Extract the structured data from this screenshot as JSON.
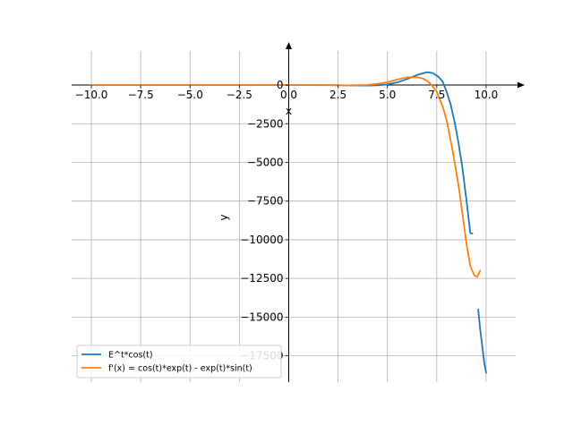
{
  "chart_data": {
    "type": "line",
    "xlabel": "x",
    "ylabel": "y",
    "xlim": [
      -11.0,
      11.5
    ],
    "ylim": [
      -19200,
      2200
    ],
    "x_ticks": [
      -10.0,
      -7.5,
      -5.0,
      -2.5,
      0.0,
      2.5,
      5.0,
      7.5,
      10.0
    ],
    "x_tick_labels": [
      "−10.0",
      "−7.5",
      "−5.0",
      "−2.5",
      "0.0",
      "2.5",
      "5.0",
      "7.5",
      "10.0"
    ],
    "y_ticks": [
      0,
      -2500,
      -5000,
      -7500,
      -10000,
      -12500,
      -15000,
      -17500
    ],
    "y_tick_labels": [
      "0",
      "−2500",
      "−5000",
      "−7500",
      "−10000",
      "−12500",
      "−15000",
      "−17500"
    ],
    "grid": true,
    "legend_position": "lower-left",
    "series": [
      {
        "name": "E^t*cos(t)",
        "color": "#1f77b4",
        "segments": [
          {
            "x": [
              -10,
              -8,
              -6,
              -4,
              -2,
              0,
              1,
              2,
              3,
              4,
              4.5,
              5,
              5.5,
              6,
              6.5,
              7,
              7.3,
              7.6,
              7.8,
              8,
              8.2,
              8.4,
              8.6,
              8.8,
              9,
              9.2,
              9.3
            ],
            "y": [
              0,
              0,
              0,
              0,
              -0.06,
              1,
              1.47,
              -3.07,
              -19.9,
              -35.7,
              -19.1,
              42,
              173,
              388,
              651,
              829,
              777,
              521,
              223,
              -434,
              -1230,
              -2360,
              -3720,
              -5360,
              -7380,
              -9570,
              -9600
            ]
          },
          {
            "x": [
              9.6,
              9.7,
              9.8,
              9.9,
              10.0
            ],
            "y": [
              -14500,
              -15800,
              -16800,
              -17900,
              -18600
            ]
          }
        ]
      },
      {
        "name": "f'(x) = cos(t)*exp(t) - exp(t)*sin(t)",
        "color": "#ff7f0e",
        "segments": [
          {
            "x": [
              -10,
              -8,
              -6,
              -4,
              -2,
              0,
              1,
              2,
              3,
              4,
              4.5,
              5,
              5.5,
              6,
              6.5,
              6.8,
              7,
              7.2,
              7.5,
              7.8,
              8,
              8.3,
              8.6,
              8.8,
              9,
              9.2,
              9.4,
              9.55,
              9.7
            ],
            "y": [
              0,
              0,
              0,
              0,
              0.07,
              1,
              -0.82,
              -9.8,
              -22.7,
              5.6,
              78,
              184,
              358,
              498,
              509,
              420,
              279,
              56,
              -430,
              -1400,
              -2260,
              -4200,
              -6450,
              -8300,
              -10200,
              -11700,
              -12300,
              -12400,
              -12000
            ]
          }
        ]
      }
    ]
  }
}
